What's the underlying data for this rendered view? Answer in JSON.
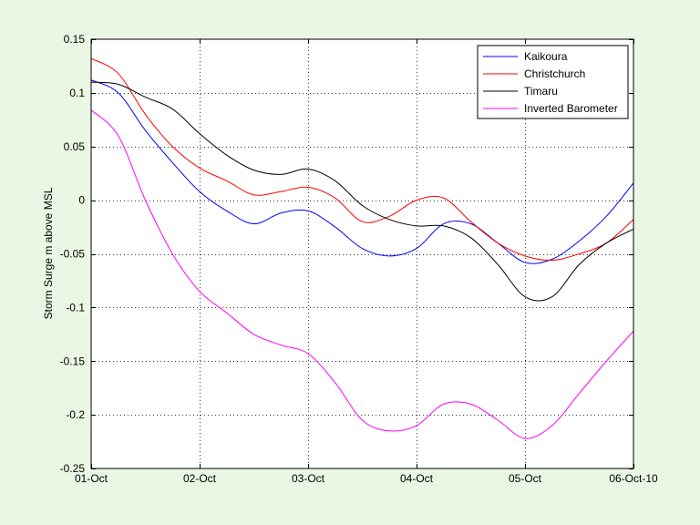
{
  "chart_data": {
    "type": "line",
    "title": "",
    "xlabel": "",
    "ylabel": "Storm Surge m above MSL",
    "xlim": [
      0,
      5
    ],
    "ylim": [
      -0.25,
      0.15
    ],
    "grid": true,
    "legend_position": "top-right",
    "x_tick_labels": [
      "01-Oct",
      "02-Oct",
      "03-Oct",
      "04-Oct",
      "05-Oct",
      "06-Oct-10"
    ],
    "y_ticks": [
      -0.25,
      -0.2,
      -0.15,
      -0.1,
      -0.05,
      0,
      0.05,
      0.1,
      0.15
    ],
    "y_tick_labels": [
      "-0.25",
      "-0.2",
      "-0.15",
      "-0.1",
      "-0.05",
      "0",
      "0.05",
      "0.1",
      "0.15"
    ],
    "x": [
      0,
      0.25,
      0.5,
      0.75,
      1.0,
      1.25,
      1.5,
      1.75,
      2.0,
      2.25,
      2.5,
      2.75,
      3.0,
      3.25,
      3.5,
      3.75,
      4.0,
      4.25,
      4.5,
      4.75,
      5.0
    ],
    "series": [
      {
        "name": "Kaikoura",
        "color": "#0000ff",
        "values": [
          0.112,
          0.1,
          0.065,
          0.035,
          0.008,
          -0.01,
          -0.022,
          -0.012,
          -0.01,
          -0.025,
          -0.045,
          -0.052,
          -0.045,
          -0.022,
          -0.022,
          -0.04,
          -0.058,
          -0.055,
          -0.038,
          -0.015,
          0.016
        ]
      },
      {
        "name": "Christchurch",
        "color": "#ff0000",
        "values": [
          0.132,
          0.118,
          0.08,
          0.05,
          0.03,
          0.018,
          0.005,
          0.008,
          0.012,
          0.002,
          -0.02,
          -0.015,
          0.0,
          0.002,
          -0.02,
          -0.04,
          -0.052,
          -0.056,
          -0.05,
          -0.04,
          -0.018
        ]
      },
      {
        "name": "Timaru",
        "color": "#000000",
        "values": [
          0.11,
          0.108,
          0.096,
          0.085,
          0.062,
          0.042,
          0.028,
          0.024,
          0.029,
          0.018,
          -0.005,
          -0.018,
          -0.024,
          -0.024,
          -0.035,
          -0.06,
          -0.09,
          -0.09,
          -0.06,
          -0.04,
          -0.027
        ]
      },
      {
        "name": "Inverted Barometer",
        "color": "#ff00ff",
        "values": [
          0.084,
          0.06,
          0.0,
          -0.05,
          -0.085,
          -0.105,
          -0.125,
          -0.135,
          -0.143,
          -0.17,
          -0.205,
          -0.215,
          -0.21,
          -0.19,
          -0.19,
          -0.205,
          -0.222,
          -0.21,
          -0.18,
          -0.15,
          -0.122
        ]
      }
    ]
  }
}
